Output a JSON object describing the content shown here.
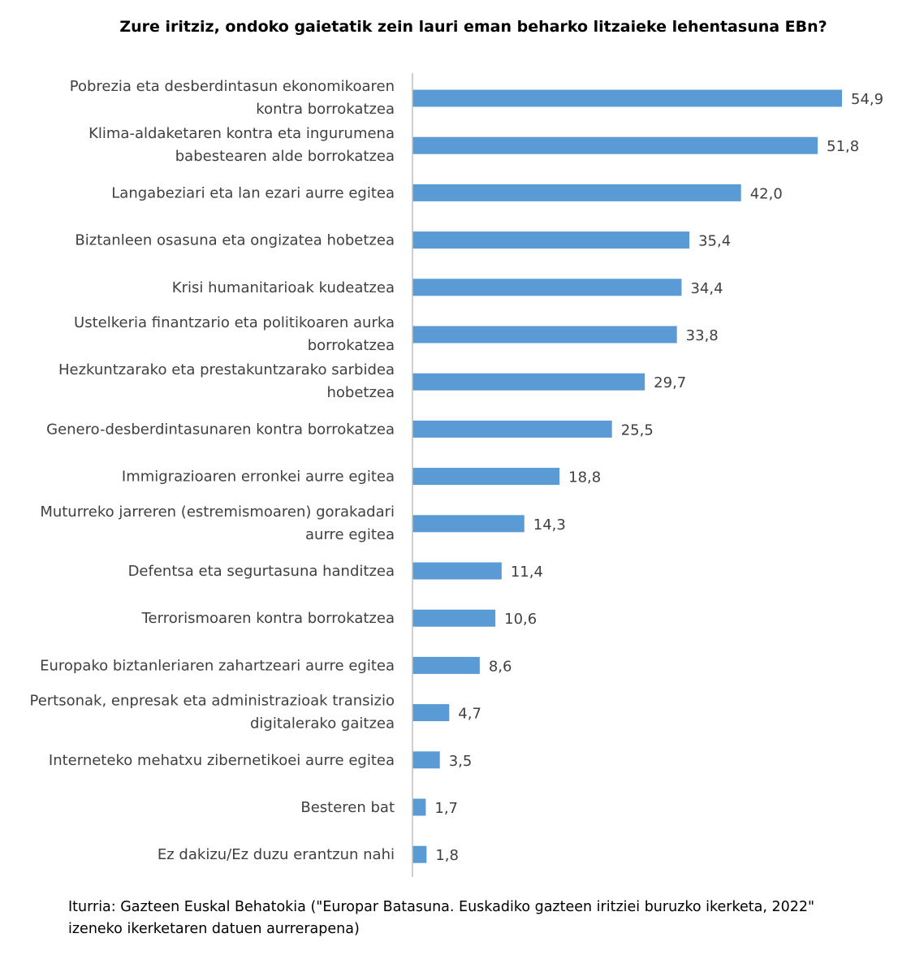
{
  "chart_data": {
    "type": "bar",
    "orientation": "horizontal",
    "title": "Zure iritziz, ondoko gaietatik zein lauri eman beharko litzaieke lehentasuna EBn?",
    "categories": [
      [
        "Pobrezia eta desberdintasun ekonomikoaren",
        "kontra borrokatzea"
      ],
      [
        "Klima-aldaketaren kontra eta ingurumena",
        "babestearen alde borrokatzea"
      ],
      [
        "Langabeziari eta lan ezari aurre egitea"
      ],
      [
        "Biztanleen osasuna eta ongizatea hobetzea"
      ],
      [
        "Krisi humanitarioak kudeatzea"
      ],
      [
        "Ustelkeria finantzario eta politikoaren aurka",
        "borrokatzea"
      ],
      [
        "Hezkuntzarako eta prestakuntzarako sarbidea",
        "hobetzea"
      ],
      [
        "Genero-desberdintasunaren kontra borrokatzea"
      ],
      [
        "Immigrazioaren erronkei aurre egitea"
      ],
      [
        "Muturreko jarreren (estremismoaren) gorakadari",
        "aurre egitea"
      ],
      [
        "Defentsa eta segurtasuna handitzea"
      ],
      [
        "Terrorismoaren kontra borrokatzea"
      ],
      [
        "Europako biztanleriaren zahartzeari aurre egitea"
      ],
      [
        "Pertsonak, enpresak eta administrazioak transizio",
        "digitalerako gaitzea"
      ],
      [
        "Interneteko mehatxu zibernetikoei aurre egitea"
      ],
      [
        "Besteren bat"
      ],
      [
        "Ez dakizu/Ez duzu erantzun nahi"
      ]
    ],
    "values": [
      54.9,
      51.8,
      42.0,
      35.4,
      34.4,
      33.8,
      29.7,
      25.5,
      18.8,
      14.3,
      11.4,
      10.6,
      8.6,
      4.7,
      3.5,
      1.7,
      1.8
    ],
    "value_labels": [
      "54,9",
      "51,8",
      "42,0",
      "35,4",
      "34,4",
      "33,8",
      "29,7",
      "25,5",
      "18,8",
      "14,3",
      "11,4",
      "10,6",
      "8,6",
      "4,7",
      "3,5",
      "1,7",
      "1,8"
    ],
    "xlim": [
      0,
      55
    ],
    "bar_color": "#5B9BD5",
    "axis_color": "#BFBFBF",
    "grid": false,
    "legend": "none"
  },
  "source_note": "Iturria: Gazteen Euskal Behatokia (\"Europar Batasuna. Euskadiko gazteen iritziei buruzko ikerketa, 2022\" izeneko ikerketaren datuen aurrerapena)"
}
